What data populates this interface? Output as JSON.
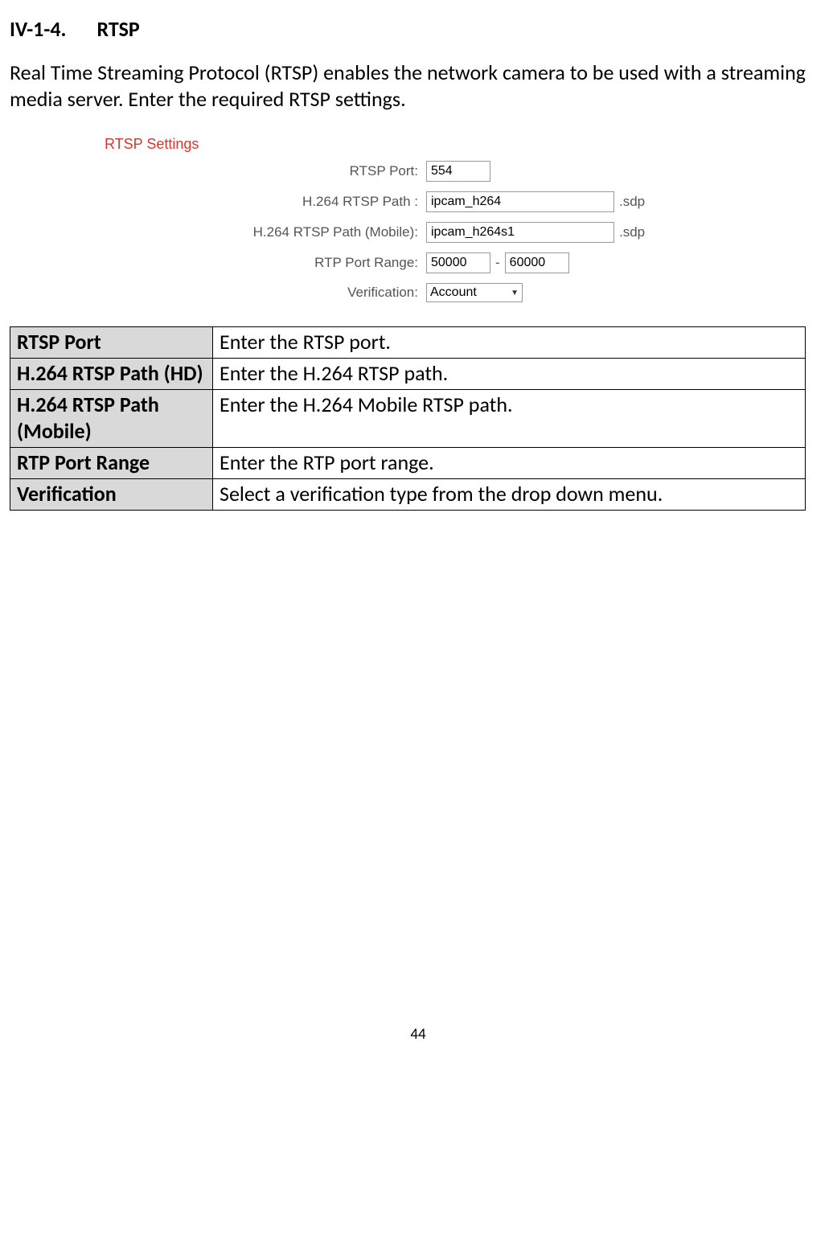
{
  "heading": {
    "number": "IV-1-4.",
    "title": "RTSP"
  },
  "intro": "Real Time Streaming Protocol (RTSP) enables the network camera to be used with a streaming media server. Enter the required RTSP settings.",
  "settings": {
    "title": "RTSP Settings",
    "rows": {
      "rtsp_port": {
        "label": "RTSP Port:",
        "value": "554"
      },
      "h264_path": {
        "label": "H.264 RTSP Path :",
        "value": "ipcam_h264",
        "suffix": ".sdp"
      },
      "h264_mobile": {
        "label": "H.264 RTSP Path (Mobile):",
        "value": "ipcam_h264s1",
        "suffix": ".sdp"
      },
      "rtp_range": {
        "label": "RTP Port Range:",
        "from": "50000",
        "dash": "-",
        "to": "60000"
      },
      "verification": {
        "label": "Verification:",
        "value": "Account"
      }
    }
  },
  "table": [
    {
      "key": "RTSP Port",
      "val": "Enter the RTSP port."
    },
    {
      "key": "H.264 RTSP Path (HD)",
      "val": "Enter the H.264 RTSP path."
    },
    {
      "key": "H.264 RTSP Path (Mobile)",
      "val": "Enter the H.264 Mobile RTSP path."
    },
    {
      "key": "RTP Port Range",
      "val": "Enter the RTP port range."
    },
    {
      "key": "Verification",
      "val": "Select a verification type from the drop down menu."
    }
  ],
  "page_number": "44"
}
